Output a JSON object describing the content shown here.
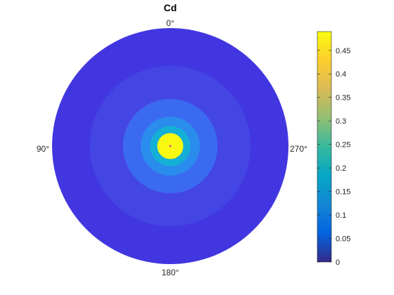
{
  "chart_data": {
    "type": "heatmap",
    "coordinate_system": "polar",
    "title": "Cd",
    "angle_labels": [
      "0°",
      "90°",
      "180°",
      "270°"
    ],
    "angle_direction": "counterclockwise, 0° at top",
    "grid": false,
    "colormap": "parula",
    "colorbar": {
      "location": "right",
      "range": [
        0,
        0.49
      ],
      "ticks": [
        0,
        0.05,
        0.1,
        0.15,
        0.2,
        0.25,
        0.3,
        0.35,
        0.4,
        0.45
      ],
      "tick_labels": [
        "0",
        "0.05",
        "0.1",
        "0.15",
        "0.2",
        "0.25",
        "0.3",
        "0.35",
        "0.4",
        "0.45"
      ]
    },
    "contour_levels": [
      {
        "r_max": 1.0,
        "value": 0.03,
        "color": "#4236e0"
      },
      {
        "r_max": 0.68,
        "value": 0.06,
        "color": "#4446e4"
      },
      {
        "r_max": 0.4,
        "value": 0.1,
        "color": "#3a6af0"
      },
      {
        "r_max": 0.25,
        "value": 0.14,
        "color": "#2a8cec"
      },
      {
        "r_max": 0.17,
        "value": 0.22,
        "color": "#15afd6"
      },
      {
        "r_max": 0.11,
        "value": 0.48,
        "color": "#f9f811"
      }
    ]
  }
}
